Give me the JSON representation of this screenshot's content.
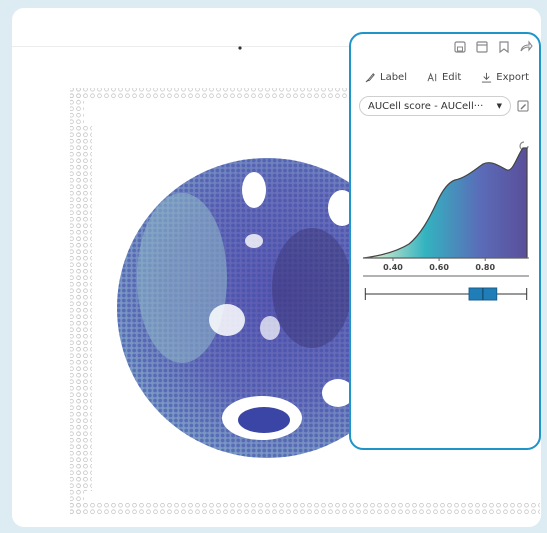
{
  "toolbar": {
    "icons": [
      "save-icon",
      "print-icon",
      "bookmark-icon",
      "share-icon"
    ]
  },
  "actions": {
    "label": "Label",
    "edit": "Edit",
    "export": "Export"
  },
  "score_select": {
    "value": "AUCell score - AUCell···"
  },
  "histogram": {
    "ticks": [
      "0.40",
      "0.60",
      "0.80"
    ],
    "colors": [
      "#fdf8d0",
      "#33b3c0",
      "#5b6bb8",
      "#5a4f9a"
    ]
  },
  "boxplot": {
    "min": 0.28,
    "q1": 0.73,
    "median": 0.79,
    "q3": 0.85,
    "max": 0.98,
    "color": "#1f7db8"
  }
}
